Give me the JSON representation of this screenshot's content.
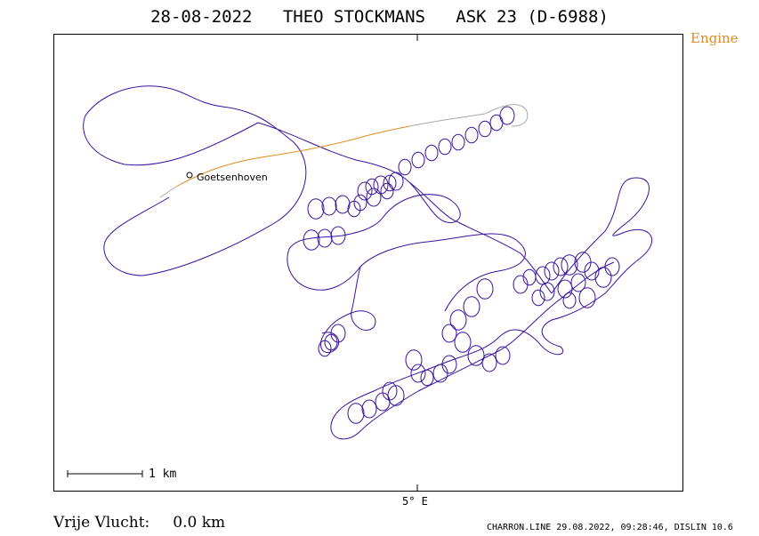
{
  "header": {
    "date": "28-08-2022",
    "pilot": "THEO STOCKMANS",
    "glider": "ASK 23 (D-6988)"
  },
  "legend": {
    "engine_label": "Engine"
  },
  "map": {
    "longitude_label": "5° E",
    "scale_label": "1 km",
    "place_name": "Goetsenhoven"
  },
  "colors": {
    "track": "#3a10a0",
    "engine": "#e08a1e",
    "engine_gap": "#a8a8a8",
    "frame": "#000000"
  },
  "stats": {
    "free_flight_label": "Vrije Vlucht:",
    "free_flight_value": "0.0 km"
  },
  "footer": {
    "text": "CHARRON.LINE 29.08.2022, 09:28:46, DISLIN 10.6"
  }
}
